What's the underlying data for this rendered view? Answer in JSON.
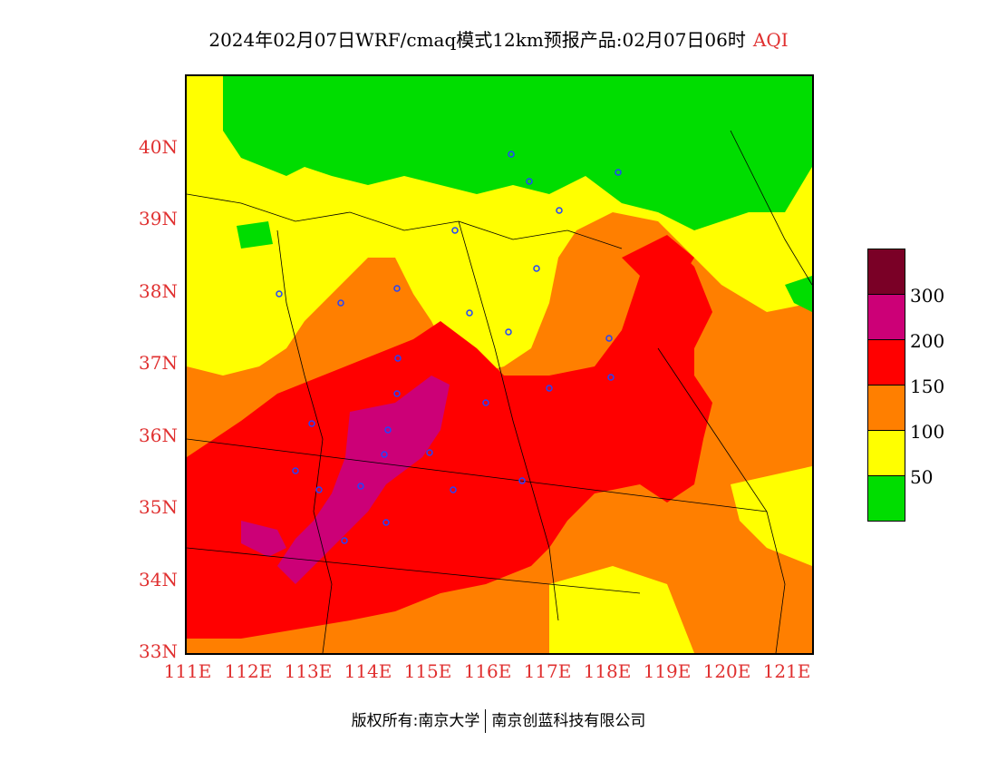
{
  "title": {
    "main": "2024年02月07日WRF/cmaq模式12km预报产品:02月07日06时",
    "pollutant": "AQI"
  },
  "axes": {
    "lat_labels": [
      "40N",
      "39N",
      "38N",
      "37N",
      "36N",
      "35N",
      "34N",
      "33N"
    ],
    "lon_labels": [
      "111E",
      "112E",
      "113E",
      "114E",
      "115E",
      "116E",
      "117E",
      "118E",
      "119E",
      "120E",
      "121E"
    ]
  },
  "legend": {
    "colors": [
      "#7a0026",
      "#cc0077",
      "#ff0000",
      "#ff7f00",
      "#ffff00",
      "#00dd00"
    ],
    "values": [
      "300",
      "200",
      "150",
      "100",
      "50"
    ]
  },
  "footer": {
    "copyright": "版权所有:南京大学",
    "company": "南京创蓝科技有限公司"
  }
}
